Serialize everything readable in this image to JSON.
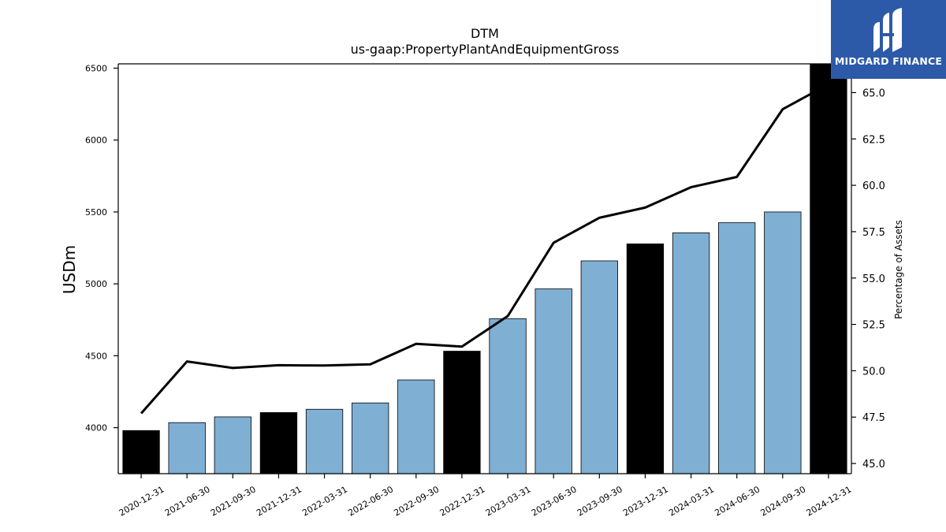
{
  "logo": {
    "text": "MIDGARD FINANCE",
    "icon": "midgard-logo-icon",
    "color": "#2c5aa8"
  },
  "chart_data": {
    "type": "bar",
    "title": "DTM",
    "subtitle": "us-gaap:PropertyPlantAndEquipmentGross",
    "ylabel": "USDm",
    "y2label": "Percentage of Assets",
    "categories": [
      "2020-12-31",
      "2021-06-30",
      "2021-09-30",
      "2021-12-31",
      "2022-03-31",
      "2022-06-30",
      "2022-09-30",
      "2022-12-31",
      "2023-03-31",
      "2023-06-30",
      "2023-09-30",
      "2023-12-31",
      "2024-03-31",
      "2024-06-30",
      "2024-09-30",
      "2024-12-31"
    ],
    "series": [
      {
        "type": "bar",
        "values": [
          3980,
          4035,
          4075,
          4105,
          4128,
          4172,
          4332,
          4532,
          4758,
          4965,
          5160,
          5278,
          5355,
          5425,
          5500,
          6550
        ],
        "year_end": [
          true,
          false,
          false,
          true,
          false,
          false,
          false,
          true,
          false,
          false,
          false,
          true,
          false,
          false,
          false,
          true
        ]
      },
      {
        "type": "line",
        "axis": "right",
        "values": [
          47.7,
          50.5,
          50.15,
          50.3,
          50.28,
          50.35,
          51.45,
          51.3,
          52.95,
          56.9,
          58.25,
          58.8,
          59.9,
          60.45,
          64.1,
          65.45
        ]
      }
    ],
    "ylim": [
      3680,
      6530
    ],
    "y2lim": [
      44.45,
      66.55
    ],
    "yticks": [
      4000,
      4500,
      5000,
      5500,
      6000,
      6500
    ],
    "y2ticks": [
      "45.0",
      "47.5",
      "50.0",
      "52.5",
      "55.0",
      "57.5",
      "60.0",
      "62.5",
      "65.0"
    ],
    "colors": {
      "bar": "#7fafd3",
      "bar_year_end": "#000000",
      "line": "#000000"
    },
    "grid": false
  }
}
